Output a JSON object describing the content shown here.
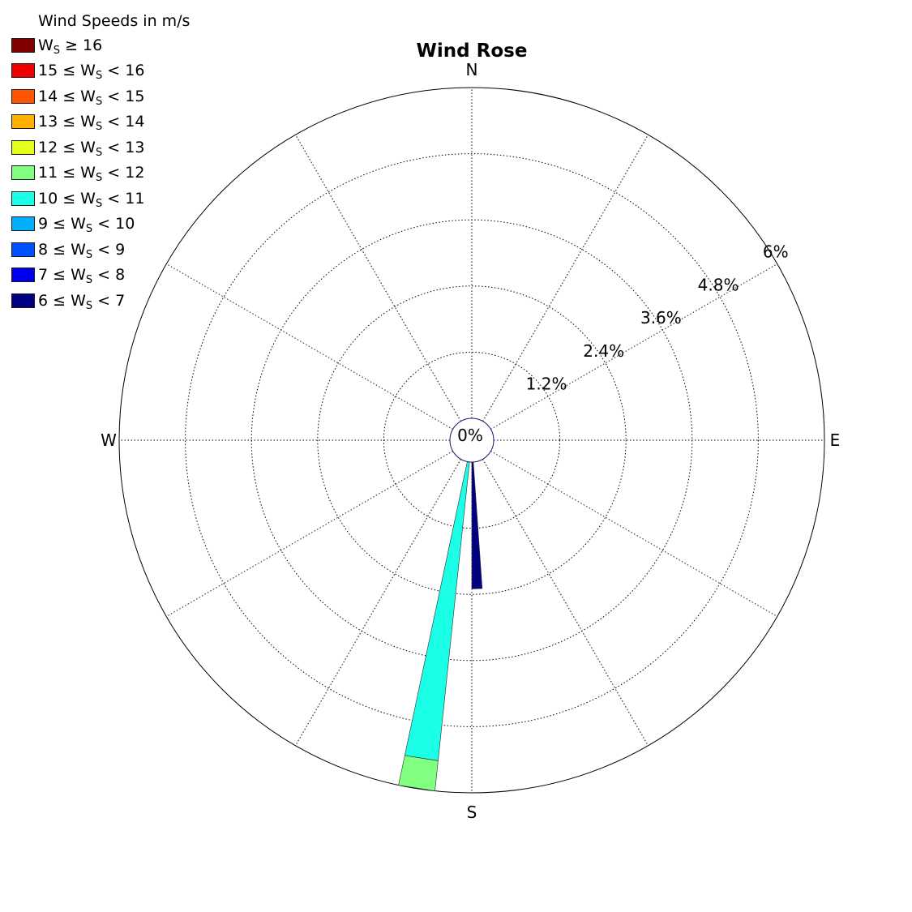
{
  "chart_data": {
    "type": "wind-rose",
    "title": "Wind Rose",
    "legend_title": "Wind Speeds in m/s",
    "legend_placement": "top-left",
    "radial_unit": "%",
    "radial_ticks": [
      1.2,
      2.4,
      3.6,
      4.8,
      6.0
    ],
    "radial_tick_labels": [
      "1.2%",
      "2.4%",
      "3.6%",
      "4.8%",
      "6%"
    ],
    "radial_max": 6.0,
    "center_label": "0%",
    "directions": [
      {
        "label": "N",
        "angle_deg": 0
      },
      {
        "label": "E",
        "angle_deg": 90
      },
      {
        "label": "S",
        "angle_deg": 180
      },
      {
        "label": "W",
        "angle_deg": 270
      }
    ],
    "spoke_step_deg": 30,
    "grid": true,
    "bins": [
      {
        "label": "W_S ≥ 16",
        "prefix": "",
        "suffix": " ≥ 16",
        "color": "#800000"
      },
      {
        "label": "15 ≤ W_S < 16",
        "prefix": "15 ≤ ",
        "suffix": " < 16",
        "color": "#ee0000"
      },
      {
        "label": "14 ≤ W_S < 15",
        "prefix": "14 ≤ ",
        "suffix": " < 15",
        "color": "#ff5500"
      },
      {
        "label": "13 ≤ W_S < 14",
        "prefix": "13 ≤ ",
        "suffix": " < 14",
        "color": "#ffb000"
      },
      {
        "label": "12 ≤ W_S < 13",
        "prefix": "12 ≤ ",
        "suffix": " < 13",
        "color": "#e5ff1a"
      },
      {
        "label": "11 ≤ W_S < 12",
        "prefix": "11 ≤ ",
        "suffix": " < 12",
        "color": "#80ff80"
      },
      {
        "label": "10 ≤ W_S < 11",
        "prefix": "10 ≤ ",
        "suffix": " < 11",
        "color": "#1affe5"
      },
      {
        "label": "9 ≤ W_S < 10",
        "prefix": "9 ≤ ",
        "suffix": " < 10",
        "color": "#00b0ff"
      },
      {
        "label": "8 ≤ W_S < 9",
        "prefix": "8 ≤ ",
        "suffix": " < 9",
        "color": "#0050ff"
      },
      {
        "label": "7 ≤ W_S < 8",
        "prefix": "7 ≤ ",
        "suffix": " < 8",
        "color": "#0000ee"
      },
      {
        "label": "6 ≤ W_S < 7",
        "prefix": "6 ≤ ",
        "suffix": " < 7",
        "color": "#000080"
      }
    ],
    "series": [
      {
        "direction_deg": 178,
        "width_deg": 4,
        "segments": [
          {
            "bin": "6 ≤ W_S < 7",
            "from": 0.0,
            "to": 2.3
          }
        ]
      },
      {
        "direction_deg": 189,
        "width_deg": 6,
        "segments": [
          {
            "bin": "10 ≤ W_S < 11",
            "from": 0.0,
            "to": 5.45
          },
          {
            "bin": "11 ≤ W_S < 12",
            "from": 5.45,
            "to": 6.0
          }
        ]
      }
    ]
  }
}
